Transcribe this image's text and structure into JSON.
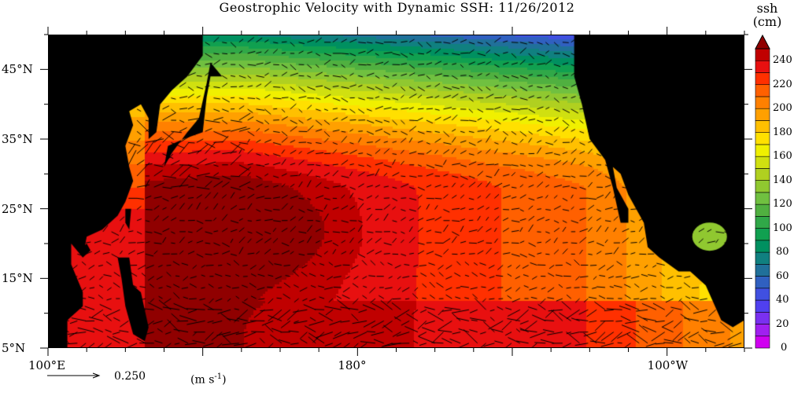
{
  "title": "Geostrophic Velocity with Dynamic SSH: 11/26/2012",
  "y_axis": {
    "ticks": [
      "45°N",
      "35°N",
      "25°N",
      "15°N",
      "5°N"
    ],
    "lat_values": [
      45,
      35,
      25,
      15,
      5
    ],
    "range": [
      5,
      50
    ]
  },
  "x_axis": {
    "ticks": [
      "100°E",
      "180°",
      "100°W"
    ],
    "lon_values": [
      100,
      180,
      260
    ],
    "range": [
      100,
      280
    ]
  },
  "colorbar": {
    "label_line1": "ssh",
    "label_line2": "(cm)",
    "tick_labels": [
      "240",
      "220",
      "200",
      "180",
      "160",
      "140",
      "120",
      "100",
      "80",
      "60",
      "40",
      "20",
      "0"
    ],
    "min": 0,
    "max": 250,
    "step": 10,
    "colors": [
      "#d000f0",
      "#a020f0",
      "#7a30f0",
      "#5040f0",
      "#4050e0",
      "#3060c0",
      "#20709a",
      "#108080",
      "#009060",
      "#10a050",
      "#30a848",
      "#50b040",
      "#70c040",
      "#90c830",
      "#b0d020",
      "#d0e010",
      "#f0f000",
      "#ffe000",
      "#ffc000",
      "#ffa000",
      "#ff8000",
      "#ff6000",
      "#ff3000",
      "#e81010",
      "#c00000"
    ],
    "overflow_color": "#900000"
  },
  "vector_key": {
    "value": "0.250",
    "units": "(m s",
    "units_exp": "-1",
    "units_close": ")"
  },
  "land_color": "#000000"
}
